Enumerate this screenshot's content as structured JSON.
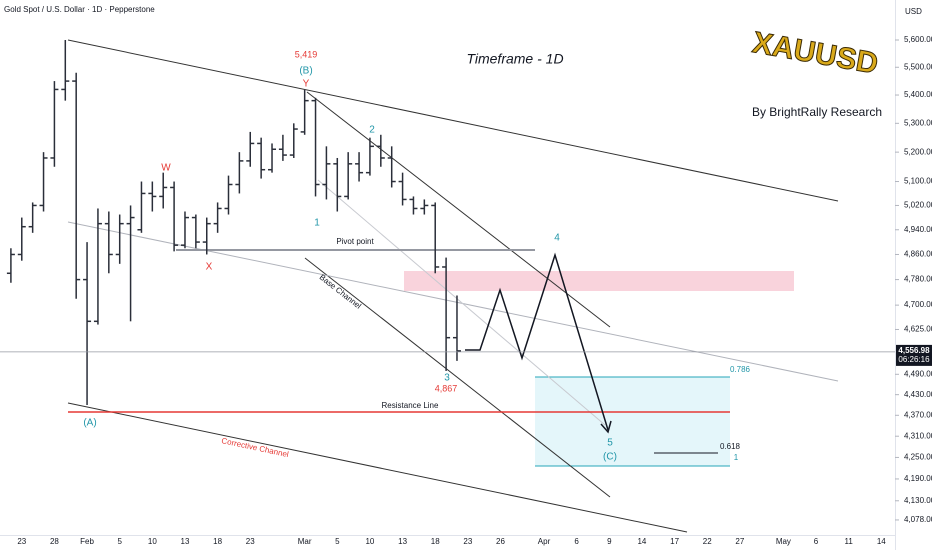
{
  "chart_data": {
    "type": "ohlc",
    "title": "Gold Spot / U.S. Dollar · 1D · Pepperstone",
    "currency": "USD",
    "subtitle": "Timeframe - 1D",
    "author": "By BrightRally Research",
    "logo": "XAUUSD",
    "countdown": "06:26:16",
    "last_price": {
      "value": 4556.98,
      "label": "4,556.98"
    },
    "labels": [
      "5,419",
      "(B)",
      "Y",
      "W",
      "X",
      "1",
      "2",
      "3",
      "4,867",
      "4",
      "5",
      "(C)",
      "(A)",
      "Pivot point",
      "Base Channel",
      "Resistance Line",
      "Corrective Channel",
      "0.786",
      "0.618",
      "1"
    ],
    "y_scale": "log",
    "grid": false,
    "color": "#2a2e39",
    "ylim": [
      4051,
      5750
    ],
    "yticks": [
      {
        "value": 5600,
        "label": "5,600.00"
      },
      {
        "value": 5500,
        "label": "5,500.00"
      },
      {
        "value": 5400,
        "label": "5,400.00"
      },
      {
        "value": 5300,
        "label": "5,300.00"
      },
      {
        "value": 5200,
        "label": "5,200.00"
      },
      {
        "value": 5100,
        "label": "5,100.00"
      },
      {
        "value": 5020,
        "label": "5,020.00"
      },
      {
        "value": 4940,
        "label": "4,940.00"
      },
      {
        "value": 4860,
        "label": "4,860.00"
      },
      {
        "value": 4780,
        "label": "4,780.00"
      },
      {
        "value": 4700,
        "label": "4,700.00"
      },
      {
        "value": 4625,
        "label": "4,625.00"
      },
      {
        "value": 4490,
        "label": "4,490.00"
      },
      {
        "value": 4430,
        "label": "4,430.00"
      },
      {
        "value": 4370,
        "label": "4,370.00"
      },
      {
        "value": 4310,
        "label": "4,310.00"
      },
      {
        "value": 4250,
        "label": "4,250.00"
      },
      {
        "value": 4190,
        "label": "4,190.00"
      },
      {
        "value": 4130,
        "label": "4,130.00"
      },
      {
        "value": 4078,
        "label": "4,078.00"
      }
    ],
    "categories": [
      null,
      "23",
      null,
      null,
      "28",
      null,
      null,
      "Feb",
      null,
      null,
      "5",
      null,
      null,
      "10",
      null,
      null,
      "13",
      null,
      null,
      "18",
      null,
      null,
      "23",
      null,
      null,
      null,
      null,
      "Mar",
      null,
      null,
      "5",
      null,
      null,
      "10",
      null,
      null,
      "13",
      null,
      null,
      "18",
      null,
      null,
      "23",
      null,
      null,
      "26",
      null,
      null,
      null,
      "Apr",
      null,
      null,
      "6",
      null,
      null,
      "9",
      null,
      null,
      "14",
      null,
      null,
      "17",
      null,
      null,
      "22",
      null,
      null,
      "27",
      null,
      null,
      null,
      "May",
      null,
      null,
      "6",
      null,
      null,
      "11",
      null,
      null,
      "14"
    ],
    "open": [
      4800,
      4860,
      4950,
      5020,
      5180,
      5420,
      5450,
      4780,
      4650,
      4960,
      4860,
      4960,
      4940,
      5060,
      5050,
      5080,
      4890,
      4980,
      4900,
      4960,
      5010,
      5090,
      5170,
      5230,
      5140,
      5210,
      5190,
      5270,
      5380,
      5090,
      5160,
      5050,
      5160,
      5130,
      5220,
      5180,
      5100,
      5040,
      5010,
      5020,
      4820,
      4600,
      null,
      null,
      null,
      null,
      null,
      null,
      null,
      null,
      null,
      null,
      null,
      null,
      null,
      null,
      null,
      null,
      null,
      null,
      null,
      null,
      null,
      null,
      null,
      null,
      null,
      null,
      null,
      null,
      null,
      null,
      null,
      null,
      null,
      null,
      null,
      null,
      null,
      null,
      null
    ],
    "high": [
      4880,
      4980,
      5030,
      5200,
      5450,
      5600,
      5480,
      4900,
      5010,
      5000,
      4990,
      5020,
      5100,
      5100,
      5130,
      5100,
      5000,
      4990,
      4980,
      5030,
      5120,
      5200,
      5270,
      5250,
      5230,
      5260,
      5300,
      5419,
      5390,
      5220,
      5180,
      5200,
      5200,
      5250,
      5260,
      5220,
      5130,
      5050,
      5040,
      5030,
      4850,
      4730,
      null,
      null,
      null,
      null,
      null,
      null,
      null,
      null,
      null,
      null,
      null,
      null,
      null,
      null,
      null,
      null,
      null,
      null,
      null,
      null,
      null,
      null,
      null,
      null,
      null,
      null,
      null,
      null,
      null,
      null,
      null,
      null,
      null,
      null,
      null,
      null,
      null,
      null,
      null
    ],
    "low": [
      4770,
      4840,
      4930,
      5000,
      5150,
      5380,
      4720,
      4400,
      4640,
      4800,
      4830,
      4650,
      4930,
      5000,
      5010,
      4870,
      4880,
      4880,
      4860,
      4930,
      4990,
      5060,
      5150,
      5110,
      5130,
      5170,
      5180,
      5260,
      5050,
      5040,
      5000,
      5040,
      5100,
      5120,
      5150,
      5080,
      5020,
      4990,
      4990,
      4800,
      4500,
      4530,
      null,
      null,
      null,
      null,
      null,
      null,
      null,
      null,
      null,
      null,
      null,
      null,
      null,
      null,
      null,
      null,
      null,
      null,
      null,
      null,
      null,
      null,
      null,
      null,
      null,
      null,
      null,
      null,
      null,
      null,
      null,
      null,
      null,
      null,
      null,
      null,
      null,
      null,
      null
    ],
    "close": [
      4860,
      4950,
      5020,
      5180,
      5420,
      5450,
      4780,
      4650,
      4960,
      4860,
      4960,
      4980,
      5060,
      5050,
      5080,
      4890,
      4980,
      4900,
      4960,
      5010,
      5090,
      5170,
      5230,
      5140,
      5210,
      5190,
      5280,
      5380,
      5090,
      5160,
      5050,
      5160,
      5130,
      5220,
      5180,
      5100,
      5040,
      5010,
      5020,
      4820,
      4600,
      4560,
      null,
      null,
      null,
      null,
      null,
      null,
      null,
      null,
      null,
      null,
      null,
      null,
      null,
      null,
      null,
      null,
      null,
      null,
      null,
      null,
      null,
      null,
      null,
      null,
      null,
      null,
      null,
      null,
      null,
      null,
      null,
      null,
      null,
      null,
      null,
      null,
      null,
      null,
      null
    ]
  }
}
